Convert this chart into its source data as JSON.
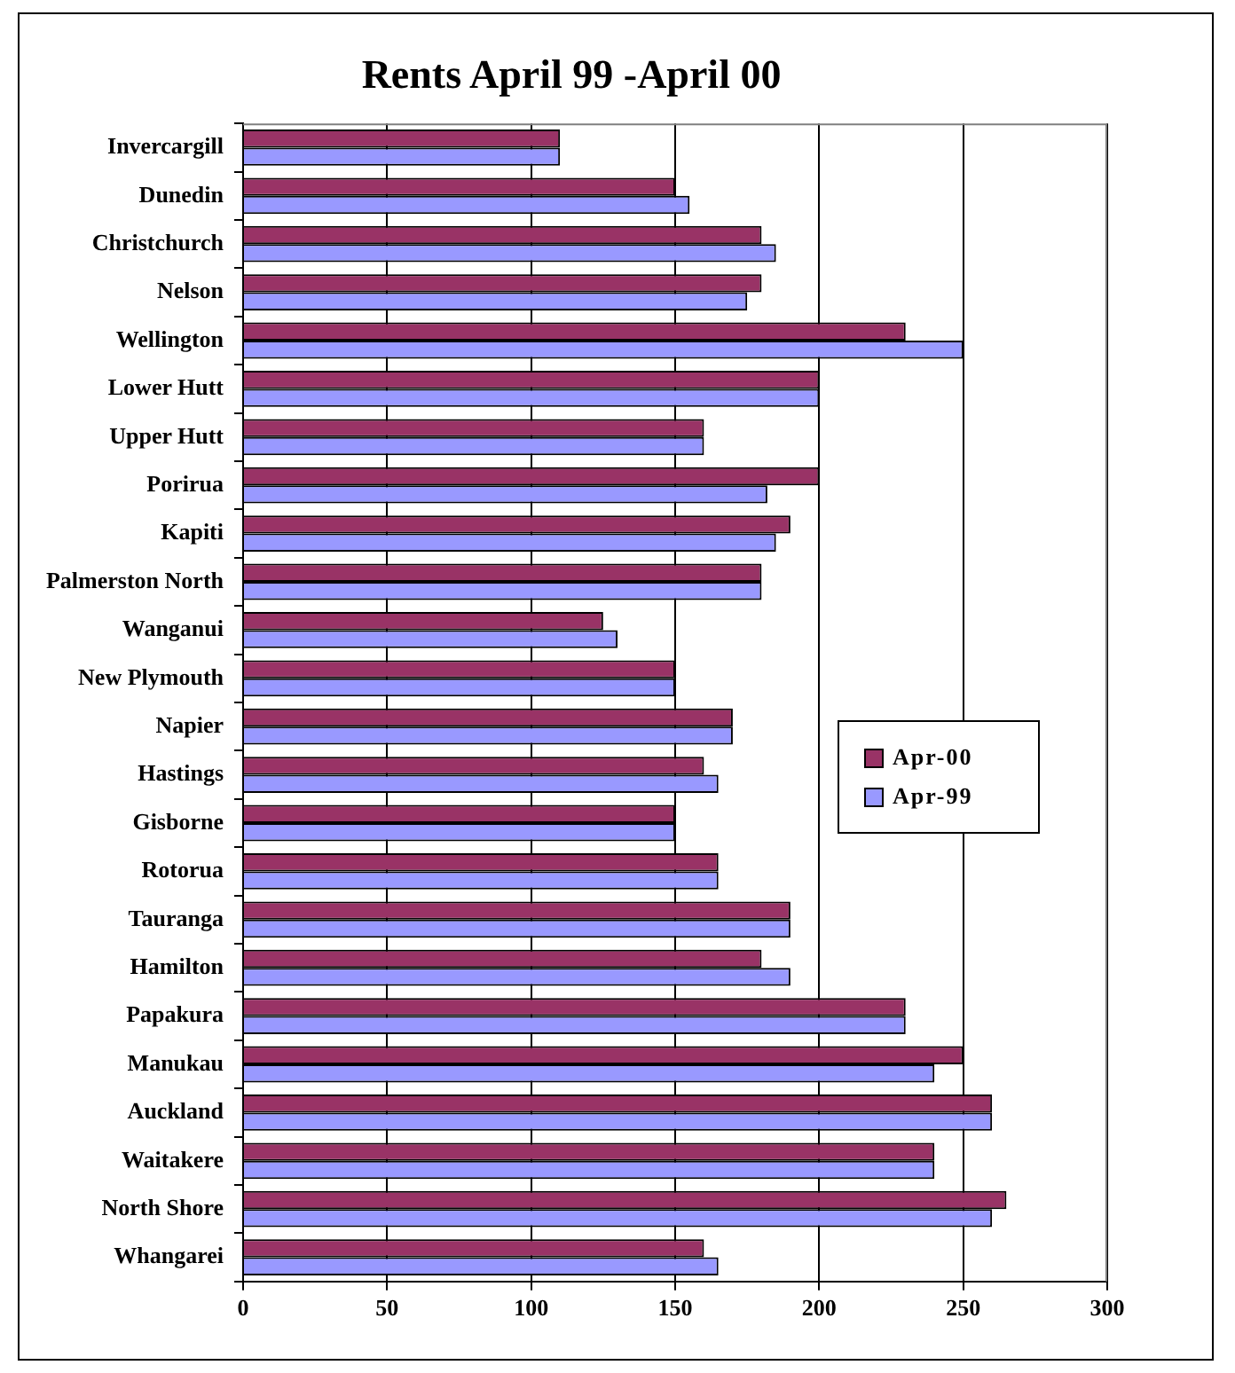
{
  "chart_data": {
    "type": "bar",
    "orientation": "horizontal",
    "title": "Rents April 99 -April 00",
    "categories": [
      "Invercargill",
      "Dunedin",
      "Christchurch",
      "Nelson",
      "Wellington",
      "Lower Hutt",
      "Upper Hutt",
      "Porirua",
      "Kapiti",
      "Palmerston North",
      "Wanganui",
      "New Plymouth",
      "Napier",
      "Hastings",
      "Gisborne",
      "Rotorua",
      "Tauranga",
      "Hamilton",
      "Papakura",
      "Manukau",
      "Auckland",
      "Waitakere",
      "North Shore",
      "Whangarei"
    ],
    "series": [
      {
        "name": "Apr-00",
        "color": "#993366",
        "values": [
          110,
          150,
          180,
          180,
          230,
          200,
          160,
          200,
          190,
          180,
          125,
          150,
          170,
          160,
          150,
          165,
          190,
          180,
          230,
          250,
          260,
          240,
          265,
          160
        ]
      },
      {
        "name": "Apr-99",
        "color": "#9999ff",
        "values": [
          110,
          155,
          185,
          175,
          250,
          200,
          160,
          182,
          185,
          180,
          130,
          150,
          170,
          165,
          150,
          165,
          190,
          190,
          230,
          240,
          260,
          240,
          260,
          165
        ]
      }
    ],
    "xlim": [
      0,
      300
    ],
    "xticks": [
      0,
      50,
      100,
      150,
      200,
      250,
      300
    ],
    "grid": "x",
    "legend": "right"
  }
}
